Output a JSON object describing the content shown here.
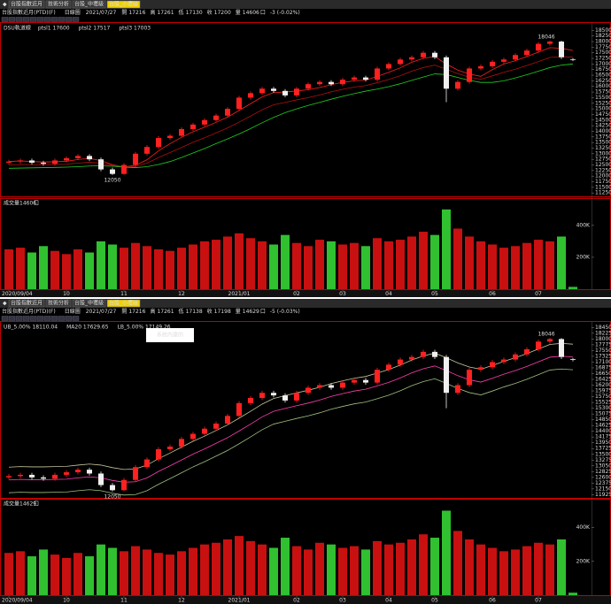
{
  "candles": {
    "dates": [
      "2020/09/04",
      null,
      null,
      null,
      null,
      "10",
      null,
      null,
      null,
      null,
      "11",
      null,
      null,
      null,
      null,
      "12",
      null,
      null,
      null,
      null,
      "2021/01",
      null,
      null,
      null,
      null,
      "02",
      null,
      null,
      null,
      "03",
      null,
      null,
      null,
      "04",
      null,
      null,
      null,
      "05",
      null,
      null,
      null,
      null,
      "06",
      null,
      null,
      null,
      "07",
      null,
      null,
      null
    ],
    "open": [
      12600,
      12650,
      12700,
      12600,
      12550,
      12700,
      12800,
      12900,
      12750,
      12300,
      12100,
      12500,
      13000,
      13300,
      13700,
      13800,
      14100,
      14300,
      14500,
      14700,
      15000,
      15500,
      15700,
      15900,
      15800,
      15600,
      15900,
      16100,
      16200,
      16100,
      16300,
      16400,
      16300,
      16800,
      17000,
      17200,
      17300,
      17500,
      17300,
      15900,
      16200,
      16800,
      16900,
      17100,
      17200,
      17400,
      17600,
      17900,
      18000,
      17216
    ],
    "high": [
      12730,
      12780,
      12780,
      12680,
      12780,
      12880,
      12980,
      12980,
      12830,
      12380,
      12580,
      13080,
      13380,
      13780,
      13880,
      14180,
      14380,
      14580,
      14780,
      15080,
      15580,
      15780,
      15980,
      15980,
      15880,
      15980,
      16180,
      16280,
      16280,
      16380,
      16480,
      16480,
      16880,
      17080,
      17280,
      17380,
      17580,
      17580,
      17380,
      16280,
      16880,
      16980,
      17180,
      17280,
      17480,
      17680,
      17980,
      18046,
      18040,
      17261
    ],
    "low": [
      12520,
      12570,
      12520,
      12470,
      12470,
      12620,
      12720,
      12670,
      12220,
      12050,
      12060,
      12420,
      12920,
      13220,
      13620,
      13720,
      14020,
      14220,
      14420,
      14620,
      14920,
      15420,
      15620,
      15720,
      15520,
      15520,
      15820,
      16020,
      16020,
      16020,
      16220,
      16220,
      16220,
      16720,
      16920,
      17120,
      17220,
      17220,
      15300,
      15820,
      16120,
      16720,
      16820,
      17020,
      17120,
      17320,
      17520,
      17820,
      17220,
      17130
    ],
    "close": [
      12650,
      12700,
      12600,
      12550,
      12700,
      12800,
      12900,
      12750,
      12300,
      12100,
      12500,
      13000,
      13300,
      13700,
      13800,
      14100,
      14300,
      14500,
      14700,
      15000,
      15500,
      15700,
      15900,
      15800,
      15600,
      15900,
      16100,
      16200,
      16100,
      16300,
      16400,
      16300,
      16800,
      17000,
      17200,
      17300,
      17500,
      17300,
      15900,
      16200,
      16800,
      16900,
      17100,
      17200,
      17400,
      17600,
      17900,
      18000,
      17300,
      17200
    ],
    "volume": [
      250000,
      260000,
      230000,
      270000,
      240000,
      220000,
      250000,
      230000,
      300000,
      280000,
      260000,
      290000,
      270000,
      250000,
      240000,
      260000,
      280000,
      300000,
      310000,
      330000,
      350000,
      320000,
      300000,
      280000,
      340000,
      290000,
      270000,
      310000,
      300000,
      280000,
      290000,
      270000,
      320000,
      300000,
      310000,
      330000,
      360000,
      340000,
      500000,
      380000,
      330000,
      300000,
      280000,
      260000,
      270000,
      290000,
      310000,
      300000,
      330000,
      14606
    ]
  },
  "panels": [
    {
      "tabs": [
        "台股指數近月",
        "技術分析",
        "台股_中壢級",
        "台股_小壢級"
      ],
      "active_tab": 3,
      "symbol": "台股指數近月(PTD)(F)",
      "period": "日線圖",
      "date": "2021/07/27",
      "quote": [
        {
          "label": "開",
          "value": 17216,
          "color": "#ff3030"
        },
        {
          "label": "高",
          "value": 17261,
          "color": "#ff3030"
        },
        {
          "label": "低",
          "value": 17130,
          "color": "#20e020"
        },
        {
          "label": "收",
          "value": 17200,
          "color": "#20e020"
        }
      ],
      "quote_volume_label": "量",
      "quote_volume": 14606,
      "quote_volume_unit": "口",
      "change": "-3 (-0.02%)",
      "indicator": "DSU軌道線",
      "lines": [
        {
          "name": "ptsl1 17600",
          "color": "#ff2020",
          "values": [
            12650,
            12680,
            12650,
            12630,
            12640,
            12660,
            12740,
            12790,
            12690,
            12510,
            12410,
            12480,
            12730,
            13130,
            13450,
            13730,
            13980,
            14180,
            14400,
            14630,
            14930,
            15230,
            15530,
            15730,
            15750,
            15800,
            15850,
            15950,
            16080,
            16180,
            16250,
            16280,
            16450,
            16630,
            16830,
            17080,
            17250,
            17330,
            17000,
            16730,
            16550,
            16450,
            16750,
            17000,
            17150,
            17330,
            17530,
            17730,
            17700,
            17600
          ]
        },
        {
          "name": "ptsl2 17517",
          "color": "#b01010",
          "values": [
            12500,
            12520,
            12510,
            12510,
            12520,
            12530,
            12580,
            12620,
            12580,
            12480,
            12410,
            12430,
            12580,
            12830,
            13050,
            13280,
            13510,
            13710,
            13930,
            14150,
            14410,
            14680,
            14960,
            15180,
            15290,
            15400,
            15500,
            15620,
            15760,
            15870,
            15970,
            16040,
            16170,
            16310,
            16480,
            16680,
            16840,
            16950,
            16770,
            16570,
            16410,
            16320,
            16470,
            16630,
            16770,
            16930,
            17110,
            17290,
            17330,
            17300
          ]
        },
        {
          "name": "ptsl3 17003",
          "color": "#20d020",
          "values": [
            12350,
            12360,
            12370,
            12380,
            12390,
            12400,
            12420,
            12450,
            12460,
            12440,
            12400,
            12380,
            12420,
            12520,
            12650,
            12830,
            13030,
            13230,
            13450,
            13660,
            13880,
            14120,
            14380,
            14620,
            14830,
            15000,
            15150,
            15290,
            15430,
            15560,
            15680,
            15790,
            15880,
            15990,
            16120,
            16270,
            16420,
            16560,
            16530,
            16400,
            16270,
            16180,
            16180,
            16250,
            16380,
            16520,
            16680,
            16840,
            16950,
            17003
          ]
        }
      ],
      "ylim": [
        11100,
        18750
      ],
      "yticks": [
        11250,
        11500,
        11750,
        12000,
        12250,
        12500,
        12750,
        13000,
        13250,
        13500,
        13750,
        14000,
        14250,
        14500,
        14750,
        15000,
        15250,
        15500,
        15750,
        16000,
        16250,
        16500,
        16750,
        17000,
        17250,
        17500,
        17750,
        18000,
        18250,
        18500
      ],
      "volume_title": "成交量",
      "volume_value": 14606,
      "volume_unit": "口",
      "vlim": [
        0,
        560000
      ],
      "vticks": [
        {
          "value": 200000,
          "label": "200K"
        },
        {
          "value": 400000,
          "label": "400K"
        }
      ]
    },
    {
      "tabs": [
        "台股指數近月",
        "技術分析",
        "台股_中壢級",
        "台股_小壢級"
      ],
      "active_tab": 3,
      "symbol": "台股指數近月(PTD)(F)",
      "period": "日線圖",
      "date": "2021/07/27",
      "quote": [
        {
          "label": "開",
          "value": 17216,
          "color": "#ff3030"
        },
        {
          "label": "高",
          "value": 17261,
          "color": "#ff3030"
        },
        {
          "label": "低",
          "value": 17138,
          "color": "#20e020"
        },
        {
          "label": "收",
          "value": 17198,
          "color": "#20e020"
        }
      ],
      "quote_volume_label": "量",
      "quote_volume": 14629,
      "quote_volume_unit": "口",
      "change": "-5 (-0.03%)",
      "annotation": "系統內建的",
      "lines": [
        {
          "name": "UB_5.00% 18110.04",
          "color": "#c8c8a0",
          "values": [
            13000,
            13020,
            13010,
            13010,
            13020,
            13030,
            13080,
            13120,
            13080,
            12980,
            12910,
            12930,
            13080,
            13330,
            13550,
            13780,
            14010,
            14210,
            14430,
            14650,
            14910,
            15180,
            15460,
            15680,
            15790,
            15900,
            16000,
            16120,
            16260,
            16370,
            16470,
            16540,
            16670,
            16810,
            16980,
            17180,
            17340,
            17450,
            17270,
            17070,
            16910,
            16820,
            16970,
            17130,
            17270,
            17430,
            17610,
            17790,
            17830,
            17800
          ]
        },
        {
          "name": "MA20 17629.65",
          "color": "#ff40b0",
          "values": [
            12500,
            12520,
            12510,
            12510,
            12520,
            12530,
            12580,
            12620,
            12580,
            12480,
            12410,
            12430,
            12580,
            12830,
            13050,
            13280,
            13510,
            13710,
            13930,
            14150,
            14410,
            14680,
            14960,
            15180,
            15290,
            15400,
            15500,
            15620,
            15760,
            15870,
            15970,
            16040,
            16170,
            16310,
            16480,
            16680,
            16840,
            16950,
            16770,
            16570,
            16410,
            16320,
            16470,
            16630,
            16770,
            16930,
            17110,
            17290,
            17330,
            17300
          ]
        },
        {
          "name": "LB_5.00% 17149.26",
          "color": "#a0c080",
          "values": [
            12000,
            12020,
            12010,
            12010,
            12020,
            12030,
            12080,
            12120,
            12080,
            11980,
            11910,
            11930,
            12080,
            12330,
            12550,
            12780,
            13010,
            13210,
            13430,
            13650,
            13910,
            14180,
            14460,
            14680,
            14790,
            14900,
            15000,
            15120,
            15260,
            15370,
            15470,
            15540,
            15670,
            15810,
            15980,
            16180,
            16340,
            16450,
            16270,
            16070,
            15910,
            15820,
            15970,
            16130,
            16270,
            16430,
            16610,
            16790,
            16830,
            16800
          ]
        }
      ],
      "ylim": [
        11800,
        18600
      ],
      "yticks": [
        11925,
        12150,
        12375,
        12600,
        12825,
        13050,
        13275,
        13500,
        13725,
        13950,
        14175,
        14400,
        14625,
        14850,
        15075,
        15300,
        15525,
        15750,
        15975,
        16200,
        16425,
        16650,
        16875,
        17100,
        17325,
        17550,
        17775,
        18000,
        18225,
        18450
      ],
      "volume_title": "成交量",
      "volume_value": 14629,
      "volume_unit": "口",
      "vlim": [
        0,
        560000
      ],
      "vticks": [
        {
          "value": 200000,
          "label": "200K"
        },
        {
          "value": 400000,
          "label": "400K"
        }
      ]
    }
  ]
}
